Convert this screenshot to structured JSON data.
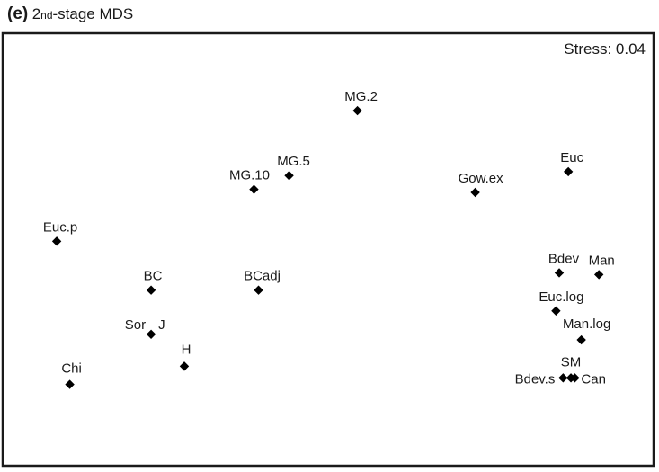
{
  "header": {
    "panel_letter": "(e)",
    "title_prefix": "2",
    "title_sub": "nd",
    "title_suffix": "-stage MDS"
  },
  "chart_data": {
    "type": "scatter",
    "title": "(e) 2nd-stage MDS",
    "annotation": "Stress: 0.04",
    "xlim": [
      0,
      100
    ],
    "ylim": [
      0,
      100
    ],
    "axes_shown": false,
    "grid": false,
    "marker": "diamond",
    "marker_color": "#000000",
    "points": [
      {
        "label": "MG.2",
        "x": 54.5,
        "y": 82.1
      },
      {
        "label": "MG.5",
        "x": 44.0,
        "y": 67.1
      },
      {
        "label": "MG.10",
        "x": 38.6,
        "y": 63.9
      },
      {
        "label": "Euc",
        "x": 86.9,
        "y": 68.0
      },
      {
        "label": "Gow.ex",
        "x": 72.6,
        "y": 63.2
      },
      {
        "label": "Euc.p",
        "x": 8.3,
        "y": 51.9
      },
      {
        "label": "BC",
        "x": 22.8,
        "y": 40.6
      },
      {
        "label": "BCadj",
        "x": 39.3,
        "y": 40.6
      },
      {
        "label": "Bdev",
        "x": 85.5,
        "y": 44.6
      },
      {
        "label": "Man",
        "x": 91.6,
        "y": 44.2
      },
      {
        "label": "Euc.log",
        "x": 85.0,
        "y": 35.8
      },
      {
        "label": "Sor",
        "x": 22.8,
        "y": 30.4
      },
      {
        "label": "J",
        "x": 22.8,
        "y": 30.4
      },
      {
        "label": "Man.log",
        "x": 88.9,
        "y": 29.1
      },
      {
        "label": "H",
        "x": 27.9,
        "y": 23.0
      },
      {
        "label": "Chi",
        "x": 10.3,
        "y": 18.8
      },
      {
        "label": "SM",
        "x": 87.3,
        "y": 20.3
      },
      {
        "label": "Bdev.s",
        "x": 86.1,
        "y": 20.3
      },
      {
        "label": "Can",
        "x": 87.9,
        "y": 20.3
      }
    ]
  }
}
